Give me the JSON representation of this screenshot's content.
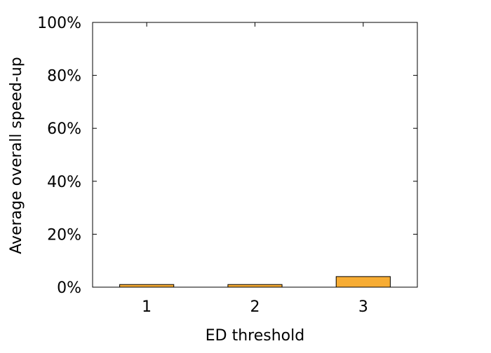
{
  "chart_data": {
    "type": "bar",
    "categories": [
      "1",
      "2",
      "3"
    ],
    "values": [
      1.0,
      1.0,
      4.0
    ],
    "xlabel": "ED threshold",
    "ylabel": "Average overall speed-up",
    "ylim": [
      0,
      100
    ],
    "yticks": [
      0,
      20,
      40,
      60,
      80,
      100
    ],
    "ytick_labels": [
      "0%",
      "20%",
      "40%",
      "60%",
      "80%",
      "100%"
    ],
    "grid": false,
    "legend": false,
    "bar_color": "#f7ac33",
    "bar_edge_color": "#000000"
  }
}
